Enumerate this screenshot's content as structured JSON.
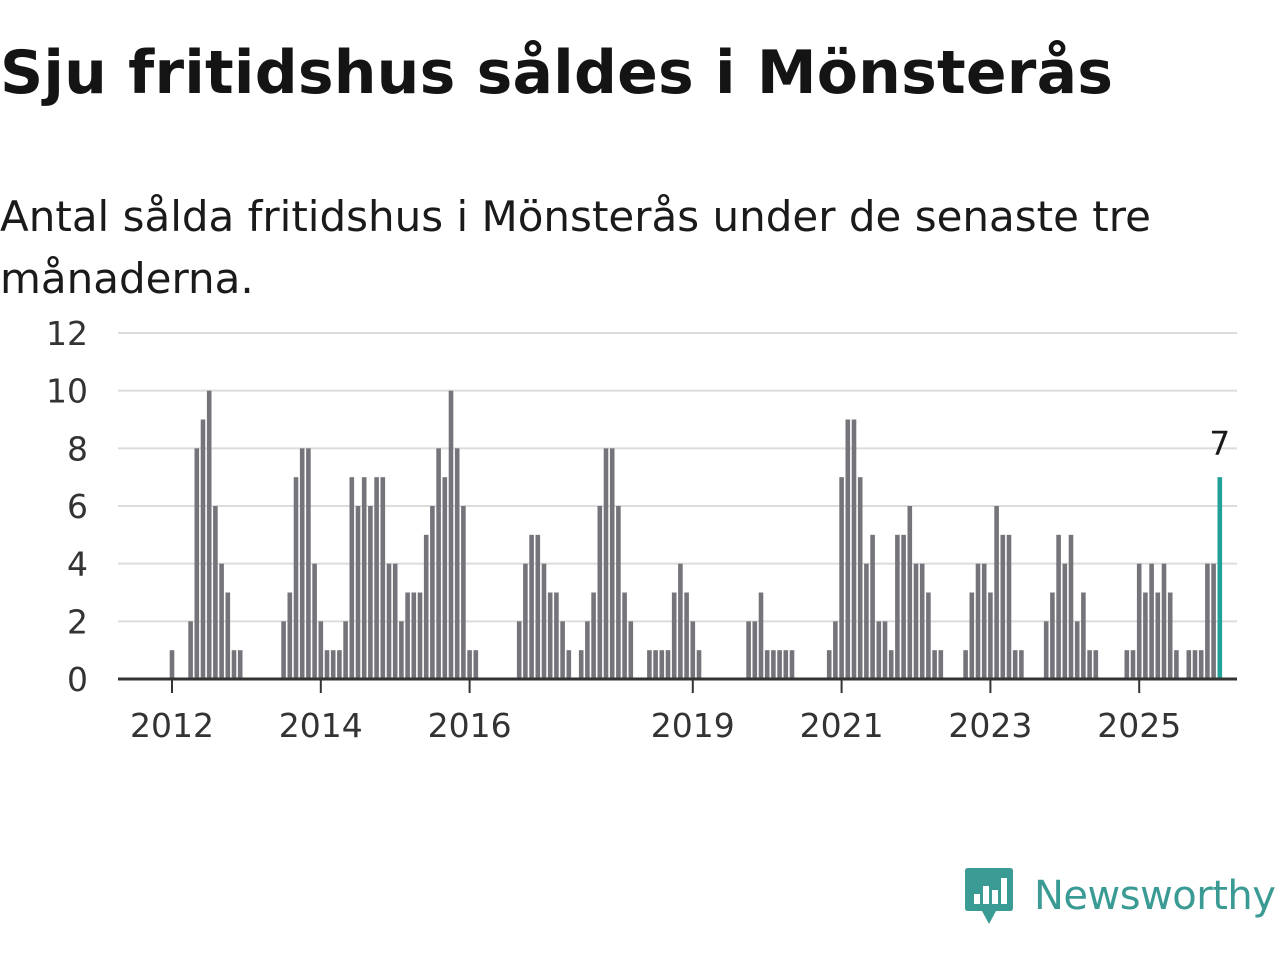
{
  "title": "Sju fritidshus såldes i Mönsterås",
  "subtitle": "Antal sålda fritidshus i Mönsterås under de senaste tre månaderna.",
  "brand": {
    "name": "Newsworthy",
    "logo_icon": "newsworthy-logo-icon",
    "color": "#3a9a94"
  },
  "chart_data": {
    "type": "bar",
    "title": "",
    "xlabel": "",
    "ylabel": "",
    "ylim": [
      0,
      12
    ],
    "yticks": [
      0,
      2,
      4,
      6,
      8,
      10,
      12
    ],
    "xticks": [
      "2012",
      "2014",
      "2016",
      "2019",
      "2021",
      "2023",
      "2025"
    ],
    "grid": true,
    "bar_color": "#76747b",
    "highlight_color": "#21a197",
    "highlight_label": "7",
    "start": "2011-10",
    "end": "2025-07",
    "values": [
      0,
      0,
      0,
      1,
      0,
      0,
      2,
      8,
      9,
      10,
      6,
      4,
      3,
      1,
      1,
      0,
      0,
      0,
      0,
      0,
      0,
      2,
      3,
      7,
      8,
      8,
      4,
      2,
      1,
      1,
      1,
      2,
      7,
      6,
      7,
      6,
      7,
      7,
      4,
      4,
      2,
      3,
      3,
      3,
      5,
      6,
      8,
      7,
      10,
      8,
      6,
      1,
      1,
      0,
      0,
      0,
      0,
      0,
      0,
      2,
      4,
      5,
      5,
      4,
      3,
      3,
      2,
      1,
      0,
      1,
      2,
      3,
      6,
      8,
      8,
      6,
      3,
      2,
      0,
      0,
      1,
      1,
      1,
      1,
      3,
      4,
      3,
      2,
      1,
      0,
      0,
      0,
      0,
      0,
      0,
      0,
      2,
      2,
      3,
      1,
      1,
      1,
      1,
      1,
      0,
      0,
      0,
      0,
      0,
      1,
      2,
      7,
      9,
      9,
      7,
      4,
      5,
      2,
      2,
      1,
      5,
      5,
      6,
      4,
      4,
      3,
      1,
      1,
      0,
      0,
      0,
      1,
      3,
      4,
      4,
      3,
      6,
      5,
      5,
      1,
      1,
      0,
      0,
      0,
      2,
      3,
      5,
      4,
      5,
      2,
      3,
      1,
      1,
      0,
      0,
      0,
      0,
      1,
      1,
      4,
      3,
      4,
      3,
      4,
      3,
      1,
      0,
      1,
      1,
      1,
      4,
      4,
      7
    ]
  }
}
